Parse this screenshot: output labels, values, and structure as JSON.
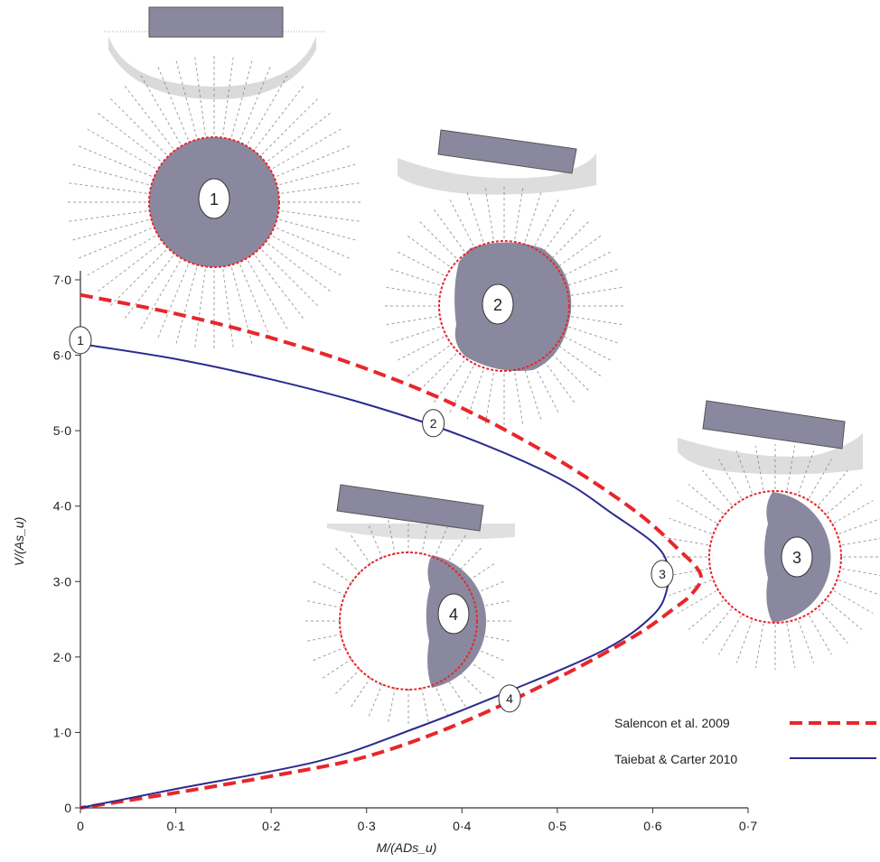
{
  "chart_data": {
    "type": "line",
    "xlabel": "M/(ADs_u)",
    "ylabel": "V/(As_u)",
    "xlim": [
      0,
      0.7
    ],
    "ylim": [
      0,
      7.0
    ],
    "x_ticks": [
      "0",
      "0·1",
      "0·2",
      "0·3",
      "0·4",
      "0·5",
      "0·6",
      "0·7"
    ],
    "y_ticks": [
      "0",
      "1·0",
      "2·0",
      "3·0",
      "4·0",
      "5·0",
      "6·0",
      "7·0"
    ],
    "grid": false,
    "legend_position": "bottom-right",
    "series": [
      {
        "name": "Salencon et al. 2009",
        "color": "#e8262b",
        "style": "dashed",
        "points": [
          [
            0,
            6.8
          ],
          [
            0.1,
            6.55
          ],
          [
            0.2,
            6.23
          ],
          [
            0.3,
            5.82
          ],
          [
            0.4,
            5.3
          ],
          [
            0.5,
            4.62
          ],
          [
            0.58,
            3.95
          ],
          [
            0.625,
            3.45
          ],
          [
            0.65,
            3.1
          ],
          [
            0.642,
            2.85
          ],
          [
            0.62,
            2.62
          ],
          [
            0.58,
            2.27
          ],
          [
            0.5,
            1.72
          ],
          [
            0.4,
            1.13
          ],
          [
            0.3,
            0.68
          ],
          [
            0.2,
            0.42
          ],
          [
            0.1,
            0.2
          ],
          [
            0,
            0
          ]
        ]
      },
      {
        "name": "Taiebat & Carter 2010",
        "color": "#2b2a8f",
        "style": "solid",
        "points": [
          [
            0,
            6.15
          ],
          [
            0.1,
            5.95
          ],
          [
            0.2,
            5.68
          ],
          [
            0.3,
            5.35
          ],
          [
            0.4,
            4.93
          ],
          [
            0.5,
            4.38
          ],
          [
            0.56,
            3.88
          ],
          [
            0.6,
            3.52
          ],
          [
            0.615,
            3.25
          ],
          [
            0.615,
            2.9
          ],
          [
            0.6,
            2.55
          ],
          [
            0.55,
            2.1
          ],
          [
            0.45,
            1.55
          ],
          [
            0.35,
            1.05
          ],
          [
            0.25,
            0.62
          ],
          [
            0.1,
            0.25
          ],
          [
            0,
            0
          ]
        ]
      }
    ],
    "markers": [
      {
        "label": "1",
        "x": 0,
        "y": 6.2
      },
      {
        "label": "2",
        "x": 0.37,
        "y": 5.1
      },
      {
        "label": "3",
        "x": 0.61,
        "y": 3.1
      },
      {
        "label": "4",
        "x": 0.45,
        "y": 1.45
      }
    ],
    "insets": [
      {
        "label": "1",
        "shape": "full"
      },
      {
        "label": "2",
        "shape": "round"
      },
      {
        "label": "3",
        "shape": "half"
      },
      {
        "label": "4",
        "shape": "half-small"
      }
    ],
    "colors": {
      "core_fill": "#8a889e",
      "footing_fill": "#8a889e",
      "dashed_circle": "#e8262b"
    }
  }
}
